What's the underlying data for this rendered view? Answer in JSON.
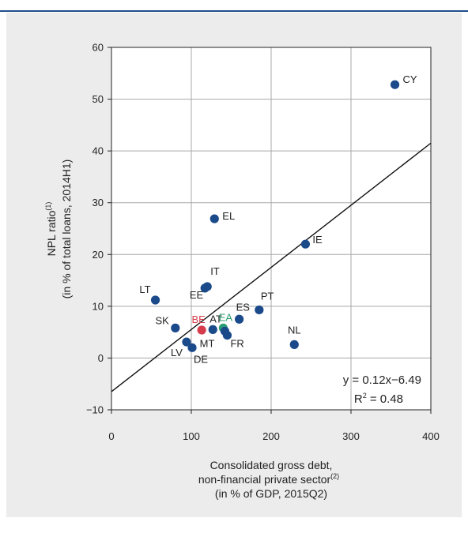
{
  "chart_data": {
    "type": "scatter",
    "xlim": [
      0,
      400
    ],
    "ylim": [
      -10,
      60
    ],
    "xticks": [
      0,
      100,
      200,
      300,
      400
    ],
    "yticks": [
      -10,
      0,
      10,
      20,
      30,
      40,
      50,
      60
    ],
    "xtick_labels": [
      "0",
      "100",
      "200",
      "300",
      "400"
    ],
    "ytick_labels": [
      "−10",
      "0",
      "10",
      "20",
      "30",
      "40",
      "50",
      "60"
    ],
    "grid": true,
    "xlabel_lines": [
      "Consolidated gross debt,",
      "non-financial private sector",
      "(in % of GDP, 2015Q2)"
    ],
    "xlabel_sup": "(2)",
    "ylabel_line1": "NPL ratio",
    "ylabel_sup": "(1)",
    "ylabel_line2": "(in % of total loans, 2014H1)",
    "points": [
      {
        "label": "CY",
        "x": 355,
        "y": 52.8,
        "color": "#1a4a8a"
      },
      {
        "label": "EL",
        "x": 129,
        "y": 26.9,
        "color": "#1a4a8a"
      },
      {
        "label": "IE",
        "x": 243,
        "y": 22.0,
        "color": "#1a4a8a"
      },
      {
        "label": "IT",
        "x": 120,
        "y": 13.8,
        "color": "#1a4a8a"
      },
      {
        "label": "EE",
        "x": 117,
        "y": 13.5,
        "color": "#1a4a8a"
      },
      {
        "label": "LT",
        "x": 55,
        "y": 11.2,
        "color": "#1a4a8a"
      },
      {
        "label": "PT",
        "x": 185,
        "y": 9.3,
        "color": "#1a4a8a"
      },
      {
        "label": "ES",
        "x": 160,
        "y": 7.5,
        "color": "#1a4a8a"
      },
      {
        "label": "SK",
        "x": 80,
        "y": 5.8,
        "color": "#1a4a8a"
      },
      {
        "label": "BE",
        "x": 113,
        "y": 5.4,
        "color": "#d63c4c"
      },
      {
        "label": "AT",
        "x": 127,
        "y": 5.5,
        "color": "#1a4a8a"
      },
      {
        "label": "EA",
        "x": 140,
        "y": 5.8,
        "color": "#2e9e72"
      },
      {
        "label": "MT",
        "x": 142,
        "y": 5.2,
        "color": "#1a4a8a"
      },
      {
        "label": "FR",
        "x": 145,
        "y": 4.4,
        "color": "#1a4a8a"
      },
      {
        "label": "NL",
        "x": 229,
        "y": 2.6,
        "color": "#1a4a8a"
      },
      {
        "label": "LV",
        "x": 94,
        "y": 3.1,
        "color": "#1a4a8a"
      },
      {
        "label": "DE",
        "x": 101,
        "y": 2.0,
        "color": "#1a4a8a"
      }
    ],
    "trendline": {
      "slope": 0.12,
      "intercept": -6.49
    },
    "equation": "y = 0.12x−6.49",
    "r2_prefix": "R",
    "r2_sup": "2",
    "r2_suffix": " = 0.48",
    "colors": {
      "point": "#1a4a8a",
      "belgium": "#d63c4c",
      "euro_area": "#2e9e72",
      "rule": "#1f4e8c",
      "panel": "#ececec"
    }
  }
}
